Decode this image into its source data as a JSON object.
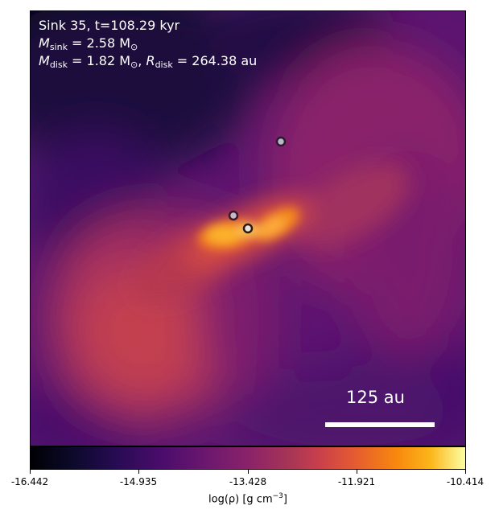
{
  "annotations": {
    "line1": "Sink 35, t=108.29 kyr",
    "m_sink_symbol": "M",
    "m_sink_sub": "sink",
    "m_sink_value": " = 2.58 M",
    "m_sink_unit_sub": "⊙",
    "m_disk_symbol": "M",
    "m_disk_sub": "disk",
    "m_disk_value": " = 1.82 M",
    "m_disk_unit_sub": "⊙",
    "r_disk_sep": ", ",
    "r_disk_symbol": "R",
    "r_disk_sub": "disk",
    "r_disk_value": " = 264.38 au"
  },
  "scale_bar": {
    "label": "125 au"
  },
  "colorbar": {
    "ticks": [
      "-16.442",
      "-14.935",
      "-13.428",
      "-11.921",
      "-10.414"
    ],
    "label_main": "log(ρ) [g cm",
    "label_sup": "−3",
    "label_end": "]",
    "colormap": "inferno"
  },
  "sinks": [
    {
      "name": "sink-north",
      "fill": "#bdb7c8"
    },
    {
      "name": "sink-central-left",
      "fill": "#c9b8c4"
    },
    {
      "name": "sink-central-right",
      "fill": "#e8e2df"
    }
  ]
}
